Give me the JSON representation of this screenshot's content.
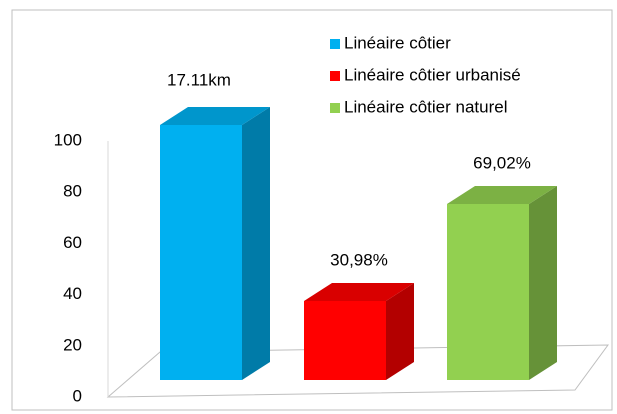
{
  "chart_data": {
    "type": "bar3d",
    "series": [
      {
        "name": "Linéaire côtier",
        "color": "#00b0f0",
        "values": [
          100
        ]
      },
      {
        "name": "Linéaire côtier urbanisé",
        "color": "#ff0000",
        "values": [
          30.98
        ],
        "value_labels": [
          "30,98%"
        ]
      },
      {
        "name": "Linéaire côtier naturel",
        "color": "#92d050",
        "values": [
          69.02
        ],
        "value_labels": [
          "69,02%"
        ]
      }
    ],
    "annotations": [
      "17.11km"
    ],
    "ylim": [
      0,
      100
    ],
    "yticks": [
      0,
      20,
      40,
      60,
      80,
      100
    ],
    "legend": "top-right"
  }
}
